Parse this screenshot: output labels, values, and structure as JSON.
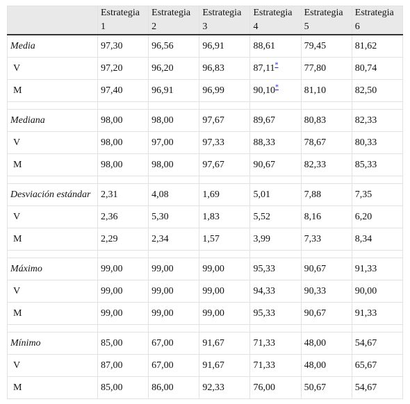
{
  "table": {
    "header": [
      "Estrategia 1",
      "Estrategia 2",
      "Estrategia 3",
      "Estrategia 4",
      "Estrategia 5",
      "Estrategia 6"
    ],
    "groups": [
      {
        "rows": [
          {
            "label": "Media",
            "cells": [
              "97,30",
              "96,56",
              "96,91",
              "88,61",
              "79,45",
              "81,62"
            ]
          },
          {
            "label": "V",
            "cells": [
              "97,20",
              "96,20",
              "96,83",
              {
                "text": "87,11",
                "note": "*"
              },
              "77,80",
              "80,74"
            ]
          },
          {
            "label": "M",
            "cells": [
              "97,40",
              "96,91",
              "96,99",
              {
                "text": "90,10",
                "note": "*"
              },
              "81,10",
              "82,50"
            ]
          }
        ]
      },
      {
        "rows": [
          {
            "label": "Mediana",
            "cells": [
              "98,00",
              "98,00",
              "97,67",
              "89,67",
              "80,83",
              "82,33"
            ]
          },
          {
            "label": "V",
            "cells": [
              "98,00",
              "97,00",
              "97,33",
              "88,33",
              "78,67",
              "80,33"
            ]
          },
          {
            "label": "M",
            "cells": [
              "98,00",
              "98,00",
              "97,67",
              "90,67",
              "82,33",
              "85,33"
            ]
          }
        ]
      },
      {
        "rows": [
          {
            "label": "Desviación estándar",
            "cells": [
              "2,31",
              "4,08",
              "1,69",
              "5,01",
              "7,88",
              "7,35"
            ]
          },
          {
            "label": "V",
            "cells": [
              "2,36",
              "5,30",
              "1,83",
              "5,52",
              "8,16",
              "6,20"
            ]
          },
          {
            "label": "M",
            "cells": [
              "2,29",
              "2,34",
              "1,57",
              "3,99",
              "7,33",
              "8,34"
            ]
          }
        ]
      },
      {
        "rows": [
          {
            "label": "Máximo",
            "cells": [
              "99,00",
              "99,00",
              "99,00",
              "95,33",
              "90,67",
              "91,33"
            ]
          },
          {
            "label": "V",
            "cells": [
              "99,00",
              "99,00",
              "99,00",
              "94,33",
              "90,33",
              "90,00"
            ]
          },
          {
            "label": "M",
            "cells": [
              "99,00",
              "99,00",
              "99,00",
              "95,33",
              "90,67",
              "91,33"
            ]
          }
        ]
      },
      {
        "rows": [
          {
            "label": "Mínimo",
            "cells": [
              "85,00",
              "67,00",
              "91,67",
              "71,33",
              "48,00",
              "54,67"
            ]
          },
          {
            "label": "V",
            "cells": [
              "87,00",
              "67,00",
              "91,67",
              "71,33",
              "48,00",
              "65,67"
            ]
          },
          {
            "label": "M",
            "cells": [
              "85,00",
              "86,00",
              "92,33",
              "76,00",
              "50,67",
              "54,67"
            ]
          }
        ]
      }
    ]
  }
}
